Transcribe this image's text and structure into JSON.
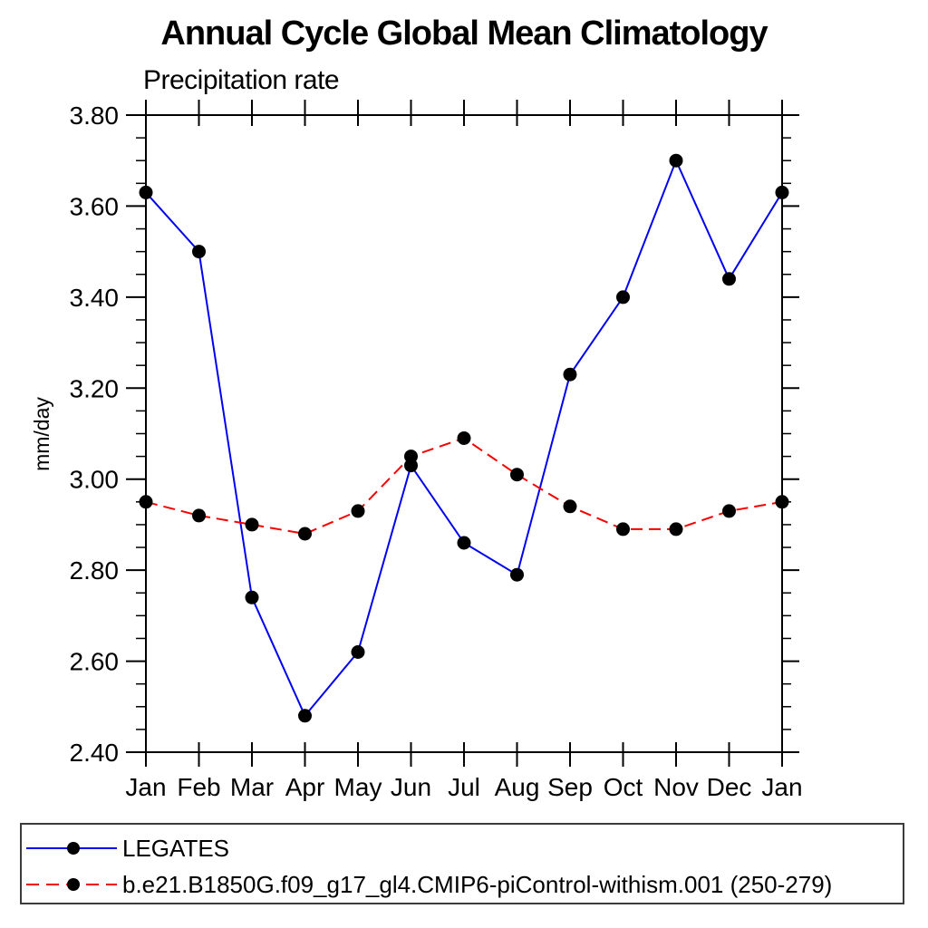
{
  "page": {
    "title": "Annual Cycle Global Mean Climatology",
    "subtitle": "Precipitation rate",
    "ylabel": "mm/day"
  },
  "chart_data": {
    "type": "line",
    "title": "Annual Cycle Global Mean Climatology",
    "subtitle": "Precipitation rate",
    "xlabel": "",
    "ylabel": "mm/day",
    "categories": [
      "Jan",
      "Feb",
      "Mar",
      "Apr",
      "May",
      "Jun",
      "Jul",
      "Aug",
      "Sep",
      "Oct",
      "Nov",
      "Dec",
      "Jan"
    ],
    "ylim": [
      2.4,
      3.8
    ],
    "ytick_step": 0.2,
    "yminor_step": 0.05,
    "ytick_labels": [
      "2.40",
      "2.60",
      "2.80",
      "3.00",
      "3.20",
      "3.40",
      "3.60",
      "3.80"
    ],
    "grid": false,
    "legend_position": "bottom-box",
    "frame_color": "#000000",
    "marker_color": "#000000",
    "series": [
      {
        "name": "LEGATES",
        "color": "#0000ee",
        "line_style": "solid",
        "marker": "filled-circle",
        "values": [
          3.63,
          3.5,
          2.74,
          2.48,
          2.62,
          3.03,
          2.86,
          2.79,
          3.23,
          3.4,
          3.7,
          3.44,
          3.63
        ]
      },
      {
        "name": "b.e21.B1850G.f09_g17_gl4.CMIP6-piControl-withism.001 (250-279)",
        "color": "#f40000",
        "line_style": "dashed",
        "marker": "filled-circle",
        "values": [
          2.95,
          2.92,
          2.9,
          2.88,
          2.93,
          3.05,
          3.09,
          3.01,
          2.94,
          2.89,
          2.89,
          2.93,
          2.95
        ]
      }
    ]
  }
}
